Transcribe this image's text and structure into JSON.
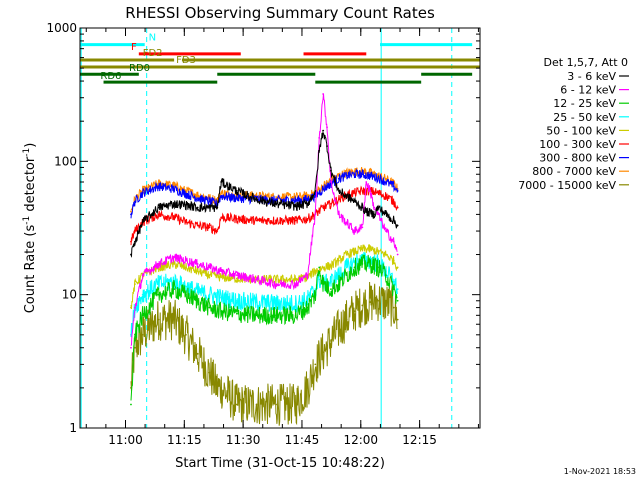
{
  "chart_data": {
    "type": "line",
    "title": "RHESSI Observing Summary Count Rates",
    "xlabel": "Start Time (31-Oct-15 10:48:22)",
    "ylabel": "Count Rate (s⁻¹ detector⁻¹)",
    "ylabel_parts": [
      "Count Rate (s",
      "-1",
      " detector",
      "-1",
      ")"
    ],
    "yscale": "log",
    "xlim_minutes": [
      0,
      102
    ],
    "ylim": [
      1,
      1000
    ],
    "x_ticks": [
      {
        "minute": 11.6,
        "label": "11:00"
      },
      {
        "minute": 26.6,
        "label": "11:15"
      },
      {
        "minute": 41.6,
        "label": "11:30"
      },
      {
        "minute": 56.6,
        "label": "11:45"
      },
      {
        "minute": 71.6,
        "label": "12:00"
      },
      {
        "minute": 86.6,
        "label": "12:15"
      }
    ],
    "y_ticks": [
      {
        "value": 1,
        "label": "1"
      },
      {
        "value": 10,
        "label": "10"
      },
      {
        "value": 100,
        "label": "100"
      },
      {
        "value": 1000,
        "label": "1000"
      }
    ],
    "legend_title": "Det 1,5,7, Att 0",
    "series": [
      {
        "name": "3 - 6 keV",
        "color": "#000000",
        "x": [
          13,
          14,
          16,
          20,
          24,
          27,
          30,
          33,
          35,
          36,
          40,
          45,
          50,
          55,
          58,
          60,
          61,
          62,
          63,
          64,
          66,
          70,
          72,
          73,
          75,
          76,
          79,
          80,
          81
        ],
        "y": [
          20,
          25,
          35,
          45,
          48,
          47,
          45,
          45,
          45,
          70,
          60,
          52,
          48,
          46,
          48,
          60,
          120,
          170,
          130,
          85,
          60,
          50,
          45,
          42,
          40,
          45,
          38,
          36,
          33
        ]
      },
      {
        "name": "6 - 12 keV",
        "color": "#ff00ff",
        "x": [
          13,
          14,
          16,
          20,
          24,
          27,
          30,
          33,
          36,
          40,
          45,
          50,
          55,
          58,
          60,
          61,
          62,
          63,
          64,
          66,
          70,
          72,
          73,
          74,
          75,
          76,
          78,
          80,
          81
        ],
        "y": [
          4,
          8,
          14,
          17,
          19,
          18,
          17,
          16,
          15,
          14,
          13,
          12,
          12,
          14,
          40,
          150,
          320,
          180,
          70,
          40,
          30,
          32,
          70,
          60,
          45,
          40,
          30,
          25,
          20
        ]
      },
      {
        "name": "12 - 25 keV",
        "color": "#00cc00",
        "x": [
          13,
          14,
          16,
          20,
          24,
          27,
          30,
          33,
          36,
          40,
          45,
          50,
          55,
          58,
          60,
          61,
          62,
          64,
          66,
          68,
          70,
          72,
          74,
          76,
          78,
          80,
          81
        ],
        "y": [
          1.5,
          5,
          7,
          10,
          11,
          10,
          9,
          8,
          7.5,
          7.2,
          7,
          7,
          7,
          8,
          10,
          16,
          12,
          11,
          12,
          14,
          16,
          17,
          17,
          16,
          14,
          11,
          9
        ]
      },
      {
        "name": "25 - 50 keV",
        "color": "#00ffff",
        "x": [
          13,
          14,
          16,
          20,
          24,
          27,
          30,
          33,
          36,
          40,
          45,
          50,
          55,
          58,
          60,
          61,
          62,
          64,
          66,
          68,
          70,
          72,
          74,
          76,
          78,
          80,
          81
        ],
        "y": [
          5,
          8,
          10,
          12,
          12.5,
          11.5,
          10.5,
          10,
          9.5,
          9,
          8.8,
          8.6,
          8.6,
          9.2,
          11,
          13,
          12,
          12.5,
          14,
          16,
          17.5,
          18,
          18,
          17,
          15,
          12.5,
          11
        ]
      },
      {
        "name": "50 - 100 keV",
        "color": "#cccc00",
        "x": [
          13,
          14,
          16,
          20,
          24,
          27,
          30,
          33,
          36,
          40,
          45,
          50,
          55,
          58,
          60,
          62,
          64,
          66,
          68,
          70,
          72,
          74,
          76,
          78,
          80,
          81
        ],
        "y": [
          8,
          12,
          14,
          16,
          17,
          16,
          15,
          14,
          13.5,
          13.2,
          13,
          13,
          13,
          13.5,
          15,
          16,
          16.5,
          18,
          20,
          21,
          22,
          22,
          21,
          20,
          18,
          16
        ]
      },
      {
        "name": "100 - 300 keV",
        "color": "#ff0000",
        "x": [
          13,
          14,
          16,
          20,
          24,
          27,
          30,
          33,
          35,
          36,
          40,
          45,
          50,
          55,
          58,
          60,
          62,
          64,
          66,
          68,
          70,
          72,
          74,
          76,
          78,
          80,
          81
        ],
        "y": [
          25,
          30,
          35,
          40,
          38,
          35,
          33,
          32,
          30,
          38,
          37,
          36,
          36,
          36,
          37,
          40,
          45,
          48,
          52,
          56,
          58,
          60,
          60,
          58,
          55,
          50,
          45
        ]
      },
      {
        "name": "300 - 800 keV",
        "color": "#0000ff",
        "x": [
          13,
          14,
          16,
          20,
          24,
          27,
          30,
          33,
          35,
          36,
          40,
          45,
          50,
          55,
          58,
          60,
          62,
          64,
          66,
          68,
          70,
          72,
          74,
          76,
          78,
          80,
          81
        ],
        "y": [
          40,
          50,
          58,
          65,
          62,
          57,
          53,
          50,
          48,
          55,
          53,
          52,
          51,
          51,
          52,
          55,
          62,
          68,
          74,
          78,
          80,
          80,
          78,
          75,
          70,
          65,
          60
        ]
      },
      {
        "name": "800 - 7000 keV",
        "color": "#ff8800",
        "x": [
          13,
          14,
          16,
          20,
          24,
          27,
          30,
          33,
          35,
          36,
          40,
          45,
          50,
          55,
          58,
          60,
          62,
          64,
          66,
          68,
          70,
          72,
          74,
          76,
          78,
          80,
          81
        ],
        "y": [
          42,
          52,
          60,
          68,
          66,
          60,
          56,
          53,
          51,
          58,
          56,
          55,
          54,
          54,
          55,
          58,
          65,
          72,
          78,
          82,
          84,
          84,
          82,
          78,
          74,
          68,
          62
        ]
      },
      {
        "name": "7000 - 15000 keV",
        "color": "#888800",
        "x": [
          13,
          14,
          16,
          20,
          24,
          27,
          30,
          33,
          35,
          36,
          40,
          45,
          50,
          55,
          58,
          60,
          62,
          64,
          66,
          68,
          70,
          72,
          74,
          76,
          78,
          80,
          81
        ],
        "y": [
          2,
          4,
          5,
          6.5,
          6.5,
          5,
          3.6,
          2.6,
          2,
          2,
          1.5,
          1.5,
          1.5,
          1.5,
          2,
          3,
          3.7,
          4.5,
          5.5,
          6.5,
          7.5,
          8.3,
          8.8,
          9,
          8.7,
          8,
          6.5
        ]
      }
    ],
    "annotations": [
      {
        "label": "N",
        "color": "#00ffff",
        "intervals": [
          [
            0,
            16.5
          ],
          [
            76.5,
            100
          ]
        ],
        "level": 750
      },
      {
        "label": "F",
        "color": "#ff0000",
        "intervals": [
          [
            15,
            41
          ],
          [
            57,
            73
          ]
        ],
        "level": 640
      },
      {
        "label": "FD2",
        "color": "#888800",
        "intervals": [
          [
            0,
            24
          ],
          [
            26,
            102
          ]
        ],
        "level": 575
      },
      {
        "label": "FD3",
        "color": "#888800",
        "intervals": [
          [
            0,
            102
          ]
        ],
        "level": 510
      },
      {
        "label": "RD0",
        "color": "#006600",
        "intervals": [
          [
            0,
            15
          ],
          [
            35,
            60
          ],
          [
            87,
            100
          ]
        ],
        "level": 450
      },
      {
        "label": "RD6",
        "color": "#006600",
        "intervals": [
          [
            6,
            35
          ],
          [
            60,
            87
          ]
        ],
        "level": 393
      }
    ],
    "vertical_markers": [
      {
        "minute": 0.3,
        "style": "solid",
        "color": "#00ffff"
      },
      {
        "minute": 17.0,
        "style": "dashed",
        "color": "#00ffff"
      },
      {
        "minute": 76.8,
        "style": "solid",
        "color": "#00ffff"
      },
      {
        "minute": 94.8,
        "style": "dashed",
        "color": "#00ffff"
      }
    ]
  },
  "footer": {
    "timestamp": "1-Nov-2021 18:53"
  }
}
